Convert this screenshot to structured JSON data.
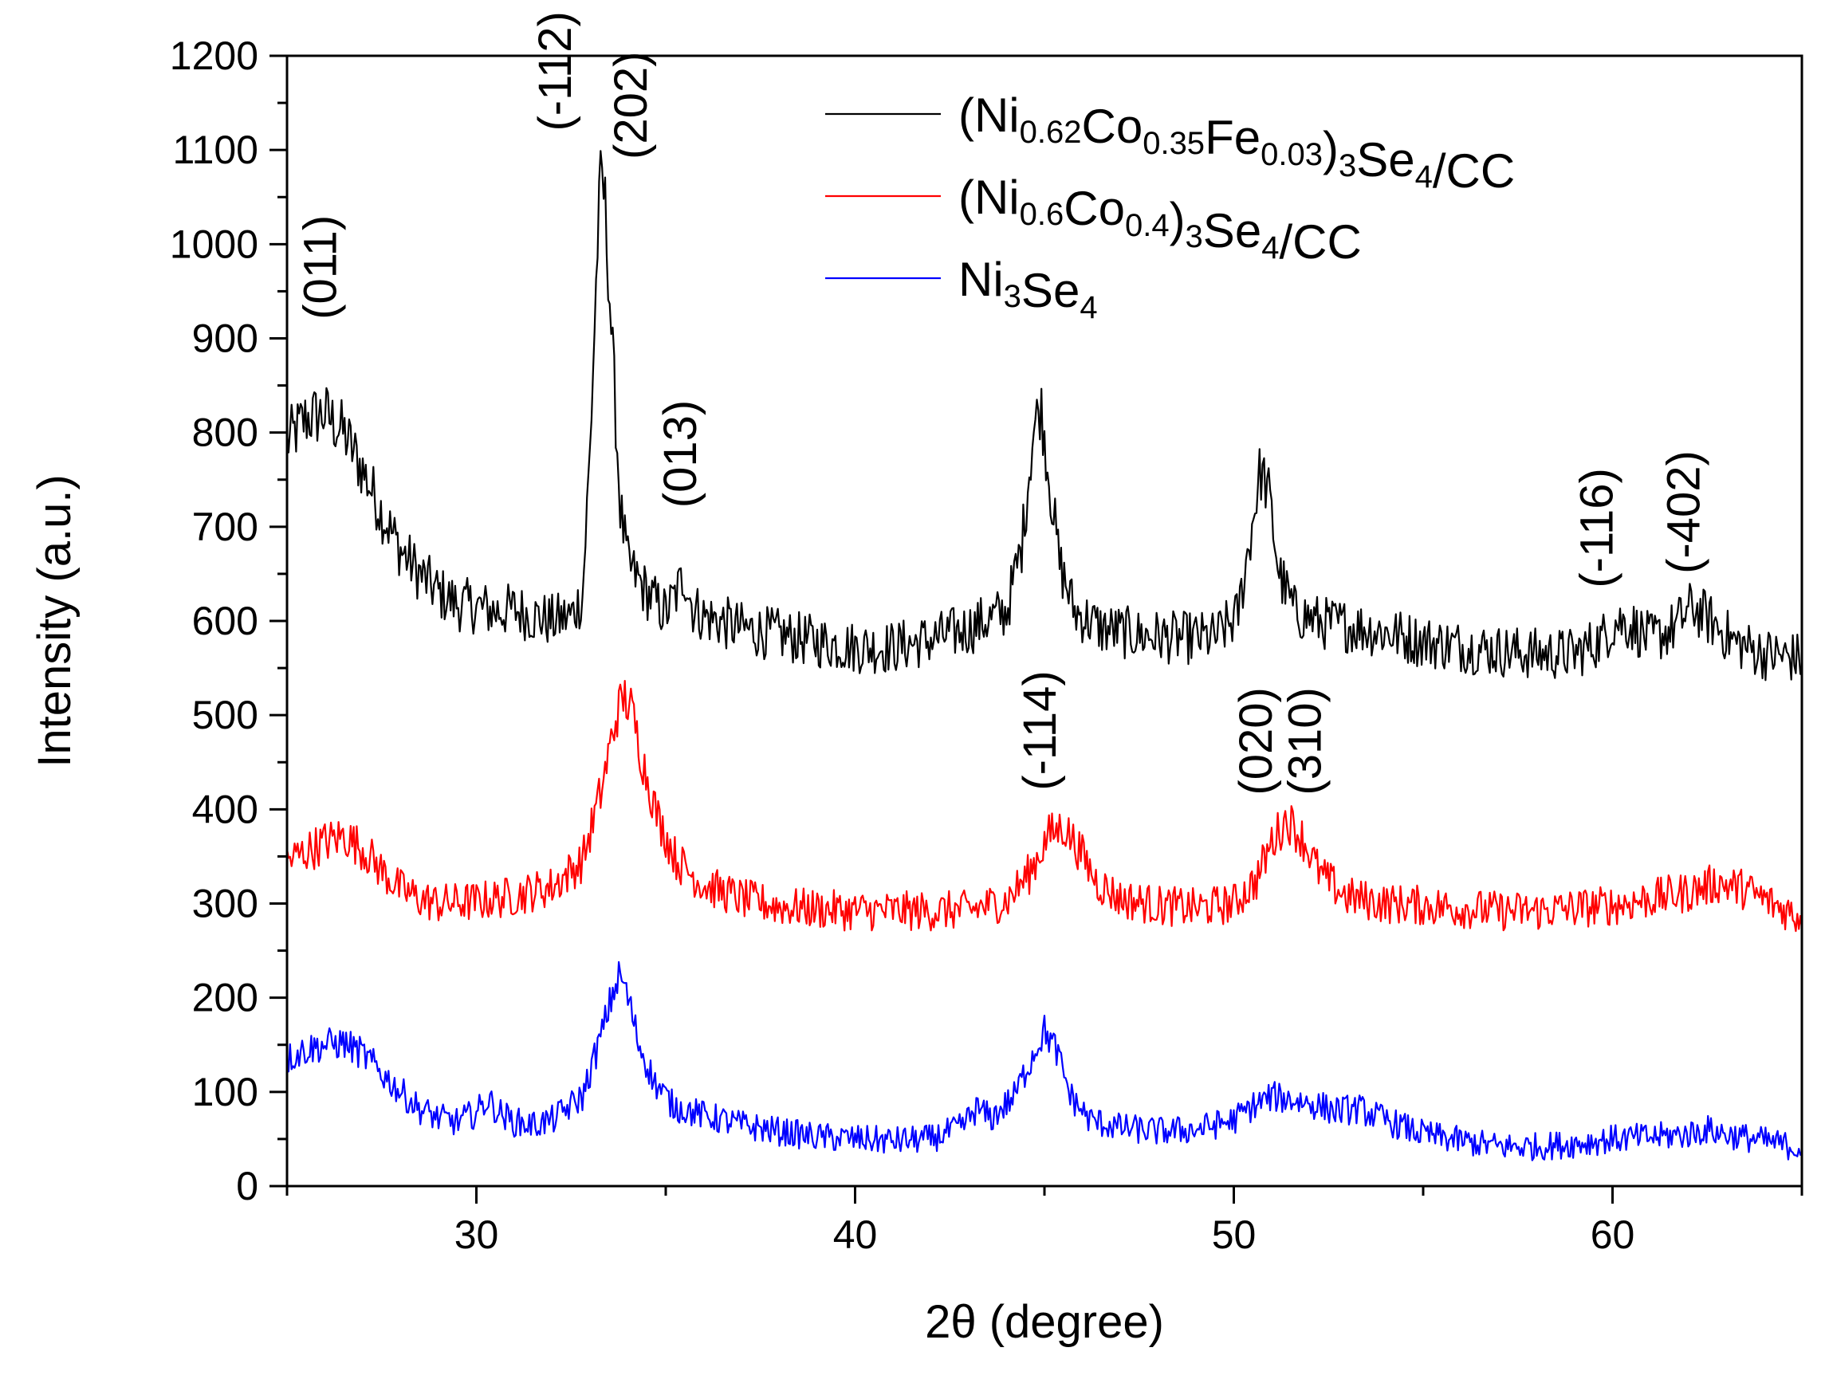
{
  "chart_data": {
    "type": "line",
    "title": "",
    "xlabel": "2θ (degree)",
    "ylabel": "Intensity (a.u.)",
    "xlim": [
      25,
      65
    ],
    "ylim": [
      0,
      1200
    ],
    "x_ticks": [
      30,
      40,
      50,
      60
    ],
    "y_ticks": [
      0,
      100,
      200,
      300,
      400,
      500,
      600,
      700,
      800,
      900,
      1000,
      1100,
      1200
    ],
    "grid": false,
    "legend_position": "top-right",
    "series": [
      {
        "name": "(Ni0.62Co0.35Fe0.03)3Se4/CC",
        "color": "#000000",
        "x": [
          25,
          25.5,
          26,
          26.5,
          27,
          27.5,
          28,
          28.5,
          29,
          29.5,
          30,
          30.5,
          31,
          31.5,
          32,
          32.5,
          32.8,
          33.0,
          33.2,
          33.3,
          33.4,
          33.6,
          33.8,
          34.0,
          34.5,
          35.0,
          35.3,
          35.5,
          35.7,
          36,
          37,
          38,
          39,
          40,
          41,
          42,
          43,
          44,
          44.4,
          44.7,
          44.9,
          45.1,
          45.4,
          45.8,
          46.5,
          47.5,
          48.5,
          49.5,
          50.1,
          50.4,
          50.7,
          50.9,
          51.2,
          51.6,
          52.3,
          53,
          54,
          55,
          56,
          57,
          58,
          59,
          59.7,
          60.1,
          60.5,
          61,
          61.6,
          62.1,
          62.6,
          63.2,
          64,
          65
        ],
        "y": [
          790,
          815,
          820,
          800,
          760,
          715,
          675,
          650,
          630,
          618,
          615,
          610,
          612,
          605,
          600,
          605,
          625,
          780,
          1000,
          1080,
          1040,
          880,
          720,
          660,
          630,
          608,
          630,
          650,
          615,
          605,
          592,
          585,
          578,
          572,
          572,
          580,
          592,
          610,
          680,
          800,
          830,
          760,
          660,
          610,
          592,
          585,
          582,
          582,
          605,
          680,
          760,
          740,
          650,
          610,
          598,
          595,
          588,
          578,
          573,
          568,
          565,
          565,
          580,
          600,
          595,
          580,
          592,
          615,
          600,
          578,
          565,
          560
        ]
      },
      {
        "name": "(Ni0.6Co0.4)3Se4/CC",
        "color": "#ff0000",
        "x": [
          25,
          25.5,
          26,
          26.5,
          27,
          27.5,
          28,
          28.5,
          29,
          30,
          31,
          32,
          32.8,
          33.3,
          33.7,
          33.9,
          34.1,
          34.4,
          34.8,
          35.3,
          36,
          37,
          38,
          39,
          40,
          41,
          42,
          43,
          44,
          44.6,
          45.1,
          45.5,
          45.9,
          46.4,
          47,
          48,
          49,
          50,
          50.6,
          51.0,
          51.4,
          51.8,
          52.3,
          53,
          54,
          55,
          56,
          57,
          58,
          59,
          60,
          61,
          62,
          62.8,
          63.5,
          64.2,
          65
        ],
        "y": [
          345,
          355,
          365,
          372,
          358,
          335,
          315,
          305,
          300,
          302,
          308,
          318,
          345,
          420,
          500,
          520,
          505,
          450,
          390,
          345,
          320,
          305,
          297,
          294,
          292,
          292,
          292,
          293,
          303,
          332,
          372,
          382,
          358,
          322,
          305,
          298,
          295,
          300,
          325,
          365,
          390,
          370,
          330,
          307,
          300,
          298,
          295,
          292,
          292,
          295,
          298,
          305,
          312,
          322,
          315,
          300,
          285
        ]
      },
      {
        "name": "Ni3Se4",
        "color": "#0000ff",
        "x": [
          25,
          25.5,
          26,
          26.5,
          27,
          27.5,
          28,
          28.5,
          29,
          29.5,
          30,
          30.3,
          30.6,
          31,
          31.5,
          32,
          32.8,
          33.3,
          33.6,
          33.8,
          34.0,
          34.3,
          34.7,
          35.2,
          36,
          37,
          38,
          39,
          40,
          41,
          42,
          42.8,
          43.2,
          43.6,
          44.2,
          44.7,
          45.0,
          45.3,
          45.7,
          46.2,
          47,
          48,
          49,
          50,
          50.5,
          51,
          51.5,
          52,
          52.7,
          53.3,
          54,
          55,
          56,
          57,
          58,
          59,
          60,
          61,
          62,
          62.5,
          63,
          64,
          65
        ],
        "y": [
          135,
          145,
          150,
          152,
          140,
          120,
          100,
          82,
          72,
          68,
          78,
          92,
          78,
          68,
          65,
          70,
          95,
          160,
          205,
          225,
          200,
          150,
          110,
          85,
          75,
          65,
          58,
          52,
          50,
          48,
          50,
          62,
          82,
          72,
          95,
          140,
          165,
          145,
          95,
          70,
          62,
          58,
          60,
          70,
          85,
          95,
          92,
          88,
          80,
          82,
          70,
          55,
          48,
          42,
          42,
          45,
          50,
          52,
          55,
          60,
          55,
          48,
          40
        ]
      }
    ],
    "annotations": [
      {
        "text": "(011)",
        "x": 26.3,
        "y": 920
      },
      {
        "text": "(-112)",
        "x": 32.5,
        "y": 1120
      },
      {
        "text": "(202)",
        "x": 34.5,
        "y": 1090
      },
      {
        "text": "(013)",
        "x": 35.8,
        "y": 720
      },
      {
        "text": "(-114)",
        "x": 45.3,
        "y": 420
      },
      {
        "text": "(020)",
        "x": 51.0,
        "y": 415
      },
      {
        "text": "(310)",
        "x": 52.3,
        "y": 415
      },
      {
        "text": "(-116)",
        "x": 60.0,
        "y": 635
      },
      {
        "text": "(-402)",
        "x": 62.3,
        "y": 650
      }
    ],
    "legend_labels": [
      {
        "segments": [
          [
            "(Ni",
            ""
          ],
          [
            "0.62",
            "sub"
          ],
          [
            "Co",
            ""
          ],
          [
            "0.35",
            "sub"
          ],
          [
            "Fe",
            ""
          ],
          [
            "0.03",
            "sub"
          ],
          [
            ")",
            ""
          ],
          [
            "3",
            "sub"
          ],
          [
            "Se",
            ""
          ],
          [
            "4",
            "sub"
          ],
          [
            "/CC",
            ""
          ]
        ]
      },
      {
        "segments": [
          [
            "(Ni",
            ""
          ],
          [
            "0.6",
            "sub"
          ],
          [
            "Co",
            ""
          ],
          [
            "0.4",
            "sub"
          ],
          [
            ")",
            ""
          ],
          [
            "3",
            "sub"
          ],
          [
            "Se",
            ""
          ],
          [
            "4",
            "sub"
          ],
          [
            "/CC",
            ""
          ]
        ]
      },
      {
        "segments": [
          [
            "Ni",
            ""
          ],
          [
            "3",
            "sub"
          ],
          [
            "Se",
            ""
          ],
          [
            "4",
            "sub"
          ]
        ]
      }
    ]
  }
}
